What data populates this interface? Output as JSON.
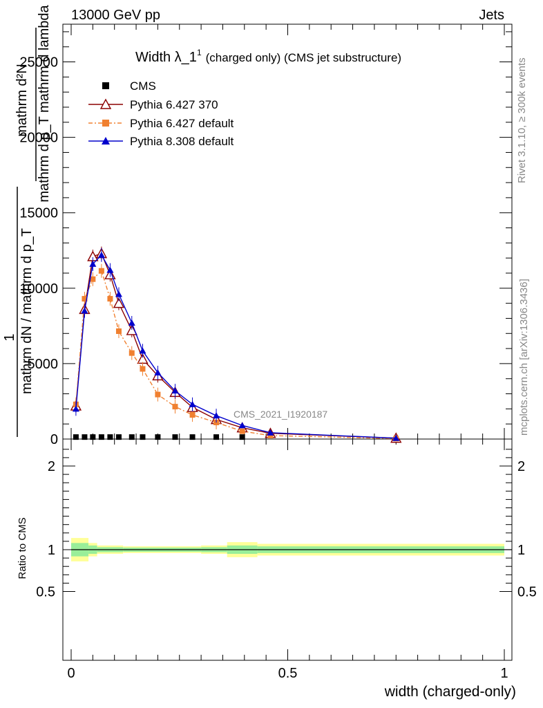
{
  "header": {
    "left": "13000 GeV pp",
    "right": "Jets"
  },
  "side": {
    "rivet": "Rivet 3.1.10, ≥ 300k events",
    "mcplots": "mcplots.cern.ch [arXiv:1306.3436]"
  },
  "chart_data": {
    "type": "line",
    "title_main": "Width λ_1",
    "title_sup": "1",
    "title_sub": "(charged only) (CMS jet substructure)",
    "watermark": "CMS_2021_I1920187",
    "ylabel_top_num": "mathrm d²N",
    "ylabel_top_den": "mathrm d p_T mathrm d lambda",
    "ylabel_bottom_one": "1",
    "ylabel_bottom": "mathrm dN / mathrm d p_T",
    "ratio_ylabel": "Ratio to CMS",
    "xlabel": "width (charged-only)",
    "xlim": [
      0,
      1
    ],
    "ylim": [
      0,
      27500
    ],
    "ratio_ylim": [
      0.4,
      2.3
    ],
    "x_ticks": [
      {
        "v": 0,
        "label": "0"
      },
      {
        "v": 0.5,
        "label": "0.5"
      },
      {
        "v": 1,
        "label": "1"
      }
    ],
    "y_ticks": [
      {
        "v": 0,
        "label": "0"
      },
      {
        "v": 5000,
        "label": "5000"
      },
      {
        "v": 10000,
        "label": "10000"
      },
      {
        "v": 15000,
        "label": "15000"
      },
      {
        "v": 20000,
        "label": "20000"
      },
      {
        "v": 25000,
        "label": "25000"
      }
    ],
    "ratio_ticks": [
      {
        "v": 0.5,
        "label": "0.5"
      },
      {
        "v": 1,
        "label": "1"
      },
      {
        "v": 2,
        "label": "2"
      }
    ],
    "x": [
      0.011,
      0.031,
      0.05,
      0.07,
      0.09,
      0.11,
      0.14,
      0.165,
      0.2,
      0.24,
      0.28,
      0.335,
      0.395,
      0.46,
      0.75
    ],
    "series": [
      {
        "name": "CMS",
        "color": "#000000",
        "marker": "square",
        "values": [
          40,
          40,
          40,
          40,
          40,
          40,
          40,
          40,
          40,
          40,
          40,
          40,
          40,
          0,
          0
        ]
      },
      {
        "name": "Pythia 6.427 370",
        "color": "#8b0000",
        "marker": "open-triangle",
        "values": [
          2200,
          8600,
          12100,
          12300,
          10900,
          9000,
          7200,
          5300,
          4200,
          3100,
          2100,
          1300,
          750,
          380,
          60
        ]
      },
      {
        "name": "Pythia 6.427 default",
        "color": "#f08030",
        "marker": "filled-square",
        "values": [
          2300,
          9300,
          10600,
          11150,
          9300,
          7150,
          5700,
          4650,
          2950,
          2150,
          1600,
          1100,
          520,
          230,
          30
        ]
      },
      {
        "name": "Pythia 8.308 default",
        "color": "#0000cc",
        "marker": "filled-triangle",
        "values": [
          2000,
          8500,
          11600,
          12200,
          11200,
          9600,
          7700,
          5850,
          4400,
          3200,
          2300,
          1550,
          900,
          420,
          60
        ]
      }
    ],
    "ratio_bands": [
      {
        "x0": 0.0,
        "x1": 0.04,
        "in_lo": 0.92,
        "in_hi": 1.08,
        "out_lo": 0.86,
        "out_hi": 1.14
      },
      {
        "x0": 0.04,
        "x1": 0.06,
        "in_lo": 0.95,
        "in_hi": 1.05,
        "out_lo": 0.92,
        "out_hi": 1.08
      },
      {
        "x0": 0.06,
        "x1": 0.12,
        "in_lo": 0.97,
        "in_hi": 1.03,
        "out_lo": 0.95,
        "out_hi": 1.05
      },
      {
        "x0": 0.12,
        "x1": 0.3,
        "in_lo": 0.975,
        "in_hi": 1.025,
        "out_lo": 0.96,
        "out_hi": 1.04
      },
      {
        "x0": 0.3,
        "x1": 0.36,
        "in_lo": 0.97,
        "in_hi": 1.03,
        "out_lo": 0.95,
        "out_hi": 1.05
      },
      {
        "x0": 0.36,
        "x1": 0.43,
        "in_lo": 0.95,
        "in_hi": 1.05,
        "out_lo": 0.91,
        "out_hi": 1.09
      },
      {
        "x0": 0.43,
        "x1": 1.0,
        "in_lo": 0.96,
        "in_hi": 1.04,
        "out_lo": 0.93,
        "out_hi": 1.07
      }
    ]
  }
}
